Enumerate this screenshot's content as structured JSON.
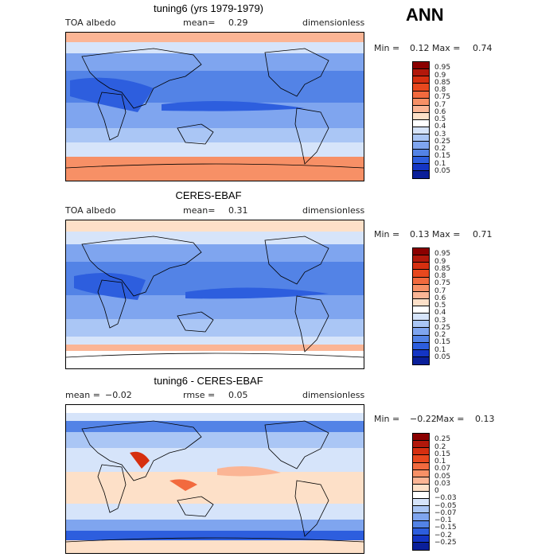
{
  "season": "ANN",
  "panels": [
    {
      "id": "model",
      "title": "tuning6 (yrs 1979-1979)",
      "left_label": "TOA albedo",
      "mean_label": "mean=",
      "mean_value": "0.29",
      "units": "dimensionless",
      "min_label": "Min =",
      "min_value": "0.12",
      "max_label": "Max =",
      "max_value": "0.74"
    },
    {
      "id": "obs",
      "title": "CERES-EBAF",
      "left_label": "TOA albedo",
      "mean_label": "mean=",
      "mean_value": "0.31",
      "units": "dimensionless",
      "min_label": "Min =",
      "min_value": "0.13",
      "max_label": "Max =",
      "max_value": "0.71"
    },
    {
      "id": "diff",
      "title": "tuning6 - CERES-EBAF",
      "left_label": "mean =",
      "left_value": "−0.02",
      "mean_label": "rmse =",
      "mean_value": "0.05",
      "units": "dimensionless",
      "min_label": "Min =",
      "min_value": "−0.22",
      "max_label": "Max =",
      "max_value": "0.13"
    }
  ],
  "colorbars": {
    "albedo": {
      "labels": [
        "0.95",
        "0.9",
        "0.85",
        "0.8",
        "0.75",
        "0.7",
        "0.6",
        "0.5",
        "0.4",
        "0.3",
        "0.25",
        "0.2",
        "0.15",
        "0.1",
        "0.05"
      ],
      "colors": [
        "#8b0000",
        "#b2180b",
        "#d62f10",
        "#e8481e",
        "#f26a3e",
        "#f79066",
        "#fbb595",
        "#fde0c8",
        "#ffffff",
        "#d6e4fa",
        "#aac6f5",
        "#7fa5ef",
        "#5383e6",
        "#2d5ede",
        "#1435c4",
        "#0a1f9a"
      ]
    },
    "diff": {
      "labels": [
        "0.25",
        "0.2",
        "0.15",
        "0.1",
        "0.07",
        "0.05",
        "0.03",
        "0",
        "−0.03",
        "−0.05",
        "−0.07",
        "−0.1",
        "−0.15",
        "−0.2",
        "−0.25"
      ],
      "colors": [
        "#8b0000",
        "#b2180b",
        "#d62f10",
        "#e8481e",
        "#f26a3e",
        "#f79066",
        "#fbb595",
        "#fde0c8",
        "#ffffff",
        "#d6e4fa",
        "#aac6f5",
        "#7fa5ef",
        "#5383e6",
        "#2d5ede",
        "#1435c4",
        "#0a1f9a"
      ]
    }
  },
  "chart_data": [
    {
      "type": "heatmap",
      "title": "tuning6 (yrs 1979-1979)",
      "variable": "TOA albedo",
      "units": "dimensionless",
      "mean": 0.29,
      "min": 0.12,
      "max": 0.74,
      "levels": [
        0.05,
        0.1,
        0.15,
        0.2,
        0.25,
        0.3,
        0.4,
        0.5,
        0.6,
        0.7,
        0.75,
        0.8,
        0.85,
        0.9,
        0.95
      ]
    },
    {
      "type": "heatmap",
      "title": "CERES-EBAF",
      "variable": "TOA albedo",
      "units": "dimensionless",
      "mean": 0.31,
      "min": 0.13,
      "max": 0.71,
      "levels": [
        0.05,
        0.1,
        0.15,
        0.2,
        0.25,
        0.3,
        0.4,
        0.5,
        0.6,
        0.7,
        0.75,
        0.8,
        0.85,
        0.9,
        0.95
      ]
    },
    {
      "type": "heatmap",
      "title": "tuning6 - CERES-EBAF",
      "units": "dimensionless",
      "mean": -0.02,
      "rmse": 0.05,
      "min": -0.22,
      "max": 0.13,
      "levels": [
        -0.25,
        -0.2,
        -0.15,
        -0.1,
        -0.07,
        -0.05,
        -0.03,
        0,
        0.03,
        0.05,
        0.07,
        0.1,
        0.15,
        0.2,
        0.25
      ]
    }
  ]
}
